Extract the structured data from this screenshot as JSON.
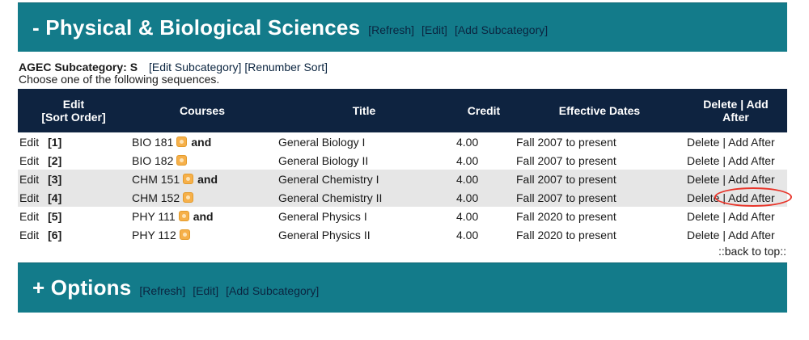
{
  "section1": {
    "title": "- Physical & Biological Sciences",
    "refresh": "[Refresh]",
    "edit": "[Edit]",
    "add_subcategory": "[Add Subcategory]"
  },
  "subcategory": {
    "label": "AGEC Subcategory: S",
    "edit_link": "[Edit Subcategory]",
    "renumber_link": "[Renumber Sort]",
    "instruction": "Choose one of the following sequences."
  },
  "table": {
    "headers": {
      "edit": "Edit",
      "sort_order": "[Sort Order]",
      "courses": "Courses",
      "title": "Title",
      "credit": "Credit",
      "effective_dates": "Effective Dates",
      "delete_add": "Delete | Add",
      "after": "After"
    },
    "rows": [
      {
        "edit": "Edit",
        "order": "[1]",
        "course": "BIO 181",
        "and": "and",
        "title": "General Biology I",
        "credit": "4.00",
        "dates": "Fall 2007 to present",
        "delete": "Delete",
        "sep": "|",
        "add_after": "Add After"
      },
      {
        "edit": "Edit",
        "order": "[2]",
        "course": "BIO 182",
        "and": "",
        "title": "General Biology II",
        "credit": "4.00",
        "dates": "Fall 2007 to present",
        "delete": "Delete",
        "sep": "|",
        "add_after": "Add After"
      },
      {
        "edit": "Edit",
        "order": "[3]",
        "course": "CHM 151",
        "and": "and",
        "title": "General Chemistry I",
        "credit": "4.00",
        "dates": "Fall 2007 to present",
        "delete": "Delete",
        "sep": "|",
        "add_after": "Add After"
      },
      {
        "edit": "Edit",
        "order": "[4]",
        "course": "CHM 152",
        "and": "",
        "title": "General Chemistry II",
        "credit": "4.00",
        "dates": "Fall 2007 to present",
        "delete": "Delete",
        "sep": "|",
        "add_after": "Add After"
      },
      {
        "edit": "Edit",
        "order": "[5]",
        "course": "PHY 111",
        "and": "and",
        "title": "General Physics I",
        "credit": "4.00",
        "dates": "Fall 2020 to present",
        "delete": "Delete",
        "sep": "|",
        "add_after": "Add After"
      },
      {
        "edit": "Edit",
        "order": "[6]",
        "course": "PHY 112",
        "and": "",
        "title": "General Physics II",
        "credit": "4.00",
        "dates": "Fall 2020 to present",
        "delete": "Delete",
        "sep": "|",
        "add_after": "Add After"
      }
    ]
  },
  "back_to_top": "::back to top::",
  "section2": {
    "title": "+ Options",
    "refresh": "[Refresh]",
    "edit": "[Edit]",
    "add_subcategory": "[Add Subcategory]"
  },
  "colors": {
    "section_header_bg": "#137b8a",
    "table_header_bg": "#0e2340",
    "alt_row_bg": "#e6e6e6",
    "annotation": "#e8352a"
  },
  "icons": {
    "course_info": "course-info-icon"
  }
}
